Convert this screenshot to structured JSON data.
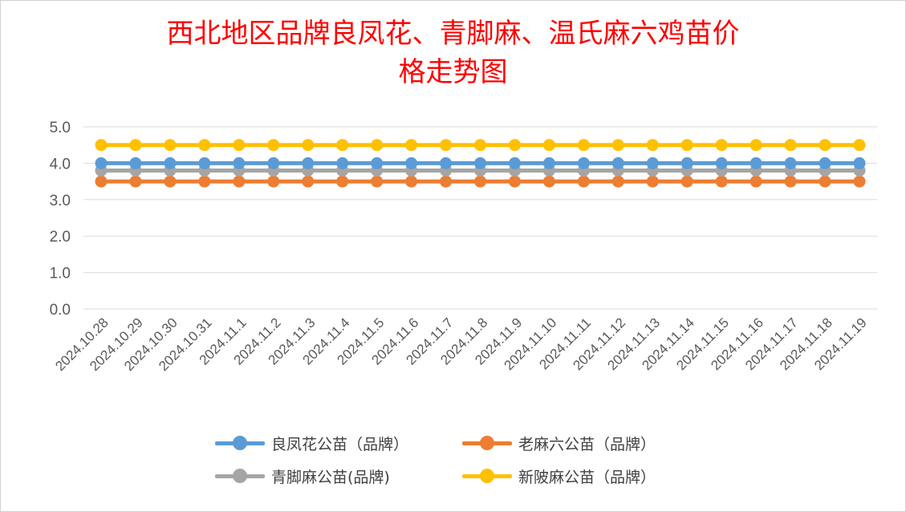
{
  "chart_data": {
    "type": "line",
    "title_lines": [
      "西北地区品牌良凤花、青脚麻、温氏麻六鸡苗价",
      "格走势图"
    ],
    "xlabel": "",
    "ylabel": "",
    "ylim": [
      0,
      5
    ],
    "yticks": [
      "0.0",
      "1.0",
      "2.0",
      "3.0",
      "4.0",
      "5.0"
    ],
    "grid": true,
    "legend_position": "bottom",
    "categories": [
      "2024.10.28",
      "2024.10.29",
      "2024.10.30",
      "2024.10.31",
      "2024.11.1",
      "2024.11.2",
      "2024.11.3",
      "2024.11.4",
      "2024.11.5",
      "2024.11.6",
      "2024.11.7",
      "2024.11.8",
      "2024.11.9",
      "2024.11.10",
      "2024.11.11",
      "2024.11.12",
      "2024.11.13",
      "2024.11.14",
      "2024.11.15",
      "2024.11.16",
      "2024.11.17",
      "2024.11.18",
      "2024.11.19"
    ],
    "series": [
      {
        "name": "良凤花公苗（品牌）",
        "color": "#5b9bd5",
        "values": [
          4.0,
          4.0,
          4.0,
          4.0,
          4.0,
          4.0,
          4.0,
          4.0,
          4.0,
          4.0,
          4.0,
          4.0,
          4.0,
          4.0,
          4.0,
          4.0,
          4.0,
          4.0,
          4.0,
          4.0,
          4.0,
          4.0,
          4.0
        ]
      },
      {
        "name": "老麻六公苗（品牌）",
        "color": "#ed7d31",
        "values": [
          3.5,
          3.5,
          3.5,
          3.5,
          3.5,
          3.5,
          3.5,
          3.5,
          3.5,
          3.5,
          3.5,
          3.5,
          3.5,
          3.5,
          3.5,
          3.5,
          3.5,
          3.5,
          3.5,
          3.5,
          3.5,
          3.5,
          3.5
        ]
      },
      {
        "name": "青脚麻公苗(品牌)",
        "color": "#a5a5a5",
        "values": [
          3.8,
          3.8,
          3.8,
          3.8,
          3.8,
          3.8,
          3.8,
          3.8,
          3.8,
          3.8,
          3.8,
          3.8,
          3.8,
          3.8,
          3.8,
          3.8,
          3.8,
          3.8,
          3.8,
          3.8,
          3.8,
          3.8,
          3.8
        ]
      },
      {
        "name": "新陂麻公苗（品牌）",
        "color": "#ffc000",
        "values": [
          4.5,
          4.5,
          4.5,
          4.5,
          4.5,
          4.5,
          4.5,
          4.5,
          4.5,
          4.5,
          4.5,
          4.5,
          4.5,
          4.5,
          4.5,
          4.5,
          4.5,
          4.5,
          4.5,
          4.5,
          4.5,
          4.5,
          4.5
        ]
      }
    ]
  }
}
